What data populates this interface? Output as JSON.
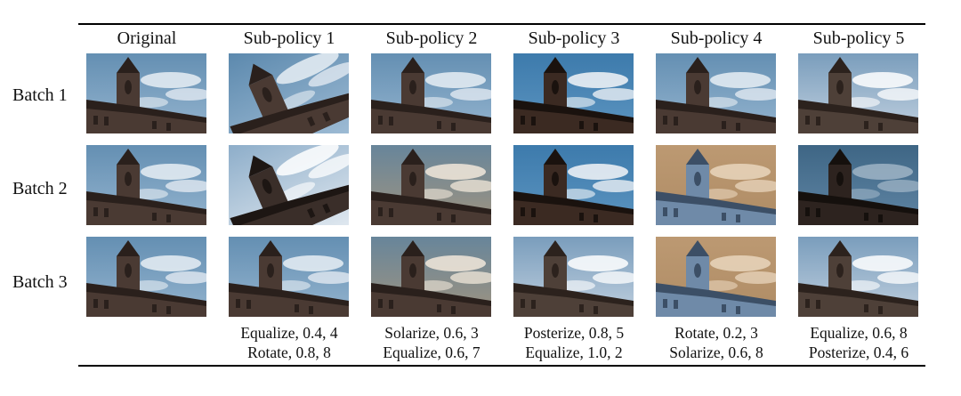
{
  "columns": [
    "Original",
    "Sub-policy 1",
    "Sub-policy 2",
    "Sub-policy 3",
    "Sub-policy 4",
    "Sub-policy 5"
  ],
  "rows": [
    "Batch 1",
    "Batch 2",
    "Batch 3"
  ],
  "policies": [
    {
      "op1": "Equalize, 0.4, 4",
      "op2": "Rotate, 0.8, 8"
    },
    {
      "op1": "Solarize, 0.6, 3",
      "op2": "Equalize, 0.6, 7"
    },
    {
      "op1": "Posterize, 0.8, 5",
      "op2": "Equalize, 1.0, 2"
    },
    {
      "op1": "Rotate, 0.2, 3",
      "op2": "Solarize, 0.6, 8"
    },
    {
      "op1": "Equalize, 0.6, 8",
      "op2": "Posterize, 0.4, 6"
    }
  ],
  "image_subject": "church-tower-photo",
  "variants": [
    [
      "original",
      "rotate-ccw",
      "original",
      "posterize",
      "original",
      "equalize-bright"
    ],
    [
      "original",
      "rotate-equalize",
      "solarize-partial",
      "posterize",
      "solarize-strong",
      "dark"
    ],
    [
      "original",
      "original",
      "solarize-partial",
      "equalize-bright",
      "solarize-strong",
      "equalize-bright"
    ]
  ],
  "palette": {
    "sky_top": "#4f7fa6",
    "sky_bottom": "#a9c4db",
    "cloud": "#e8eef4",
    "building": "#4a3a33",
    "building_dark": "#2a201c",
    "solarize_tint": "#b89a74"
  }
}
